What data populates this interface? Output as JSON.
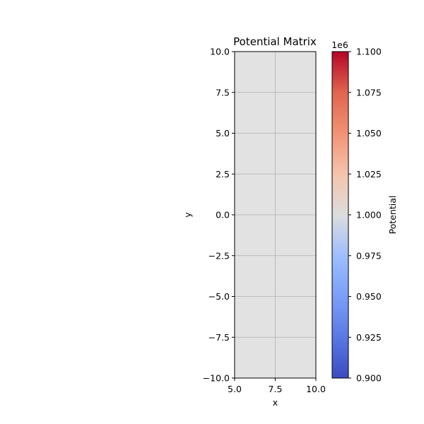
{
  "chart_data": {
    "type": "heatmap",
    "title": "Potential Matrix",
    "xlabel": "x",
    "ylabel": "y",
    "xlim": [
      5.0,
      10.0
    ],
    "ylim": [
      -10.0,
      10.0
    ],
    "xticks": [
      5.0,
      7.5,
      10.0
    ],
    "xtick_labels": [
      "5.0",
      "7.5",
      "10.0"
    ],
    "yticks": [
      -10.0,
      -7.5,
      -5.0,
      -2.5,
      0.0,
      2.5,
      5.0,
      7.5,
      10.0
    ],
    "ytick_labels": [
      "−10.0",
      "−7.5",
      "−5.0",
      "−2.5",
      "0.0",
      "2.5",
      "5.0",
      "7.5",
      "10.0"
    ],
    "grid": true,
    "values": [
      [
        1000000
      ]
    ],
    "fill_color": "#e2e2e2",
    "colorbar": {
      "label": "Potential",
      "colormap": "coolwarm",
      "offset_text": "1e6",
      "range": [
        0.9,
        1.1
      ],
      "ticks": [
        0.9,
        0.925,
        0.95,
        0.975,
        1.0,
        1.025,
        1.05,
        1.075,
        1.1
      ],
      "tick_labels": [
        "0.900",
        "0.925",
        "0.950",
        "0.975",
        "1.000",
        "1.025",
        "1.050",
        "1.075",
        "1.100"
      ]
    }
  }
}
